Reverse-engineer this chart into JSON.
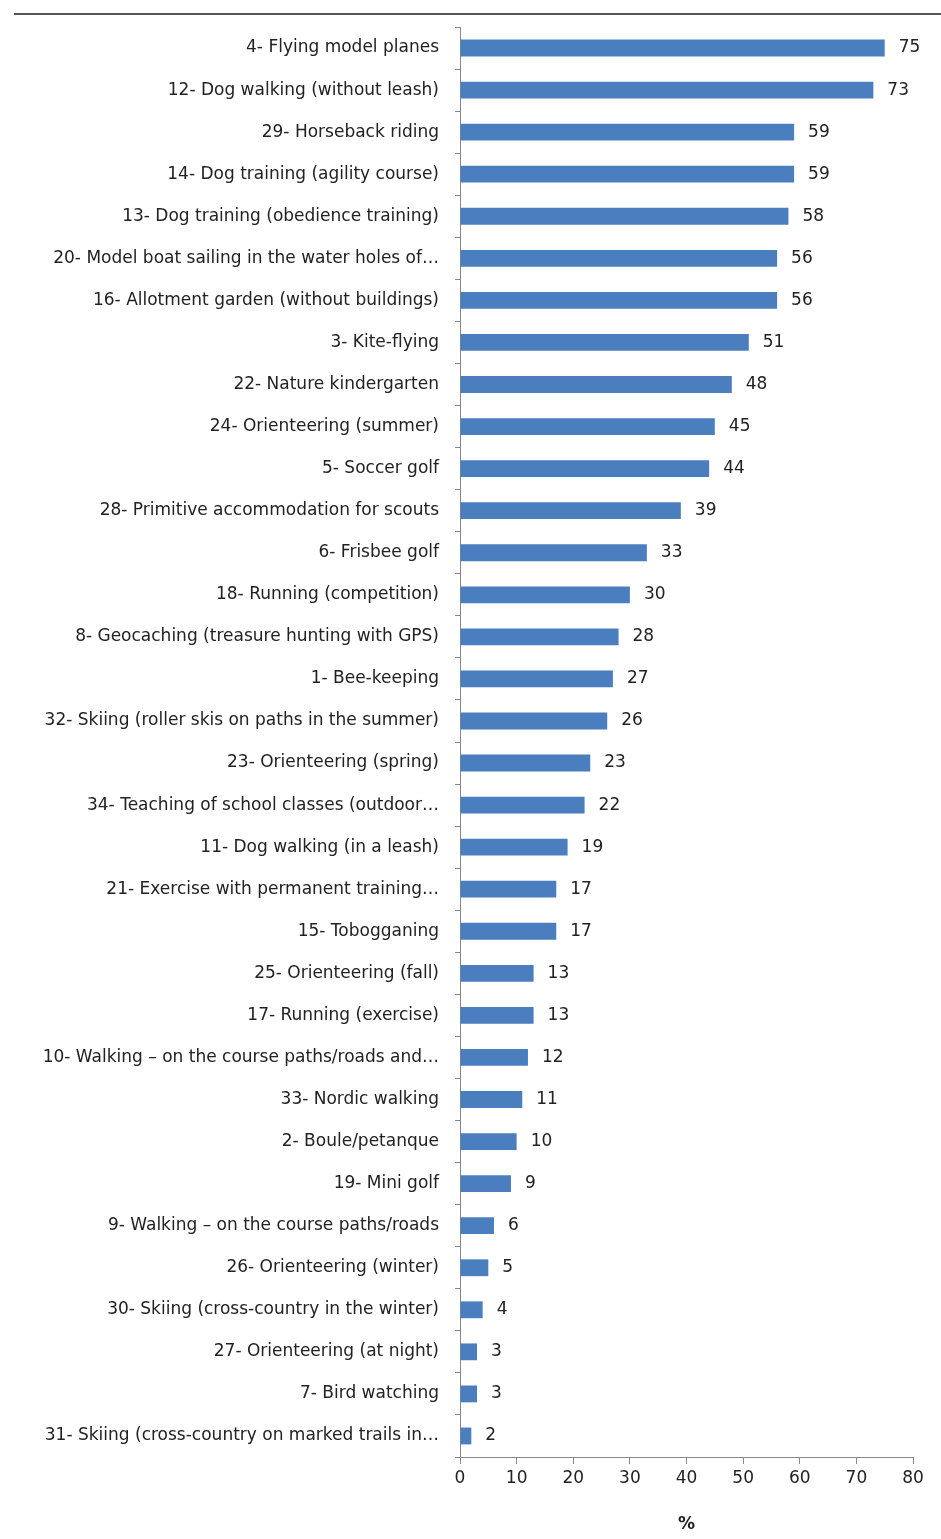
{
  "chart_data": {
    "type": "bar",
    "orientation": "horizontal",
    "xlabel": "%",
    "categories": [
      "4- Flying model planes",
      "12- Dog walking (without leash)",
      "29- Horseback riding",
      "14- Dog training (agility course)",
      "13- Dog training (obedience training)",
      "20- Model boat sailing in the water holes of…",
      "16- Allotment garden (without buildings)",
      "3- Kite-flying",
      "22- Nature kindergarten",
      "24- Orienteering (summer)",
      "5- Soccer golf",
      "28- Primitive accommodation for scouts",
      "6- Frisbee golf",
      "18- Running (competition)",
      "8- Geocaching (treasure hunting with GPS)",
      "1- Bee-keeping",
      "32- Skiing (roller skis on paths in the summer)",
      "23- Orienteering (spring)",
      "34- Teaching of school classes (outdoor…",
      "11- Dog walking (in a leash)",
      "21- Exercise with permanent training…",
      "15- Tobogganing",
      "25- Orienteering (fall)",
      "17- Running (exercise)",
      "10- Walking – on the course paths/roads and…",
      "33- Nordic walking",
      "2- Boule/petanque",
      "19- Mini golf",
      "9- Walking – on the course paths/roads",
      "26- Orienteering (winter)",
      "30- Skiing (cross-country in the winter)",
      "27- Orienteering (at night)",
      "7- Bird watching",
      "31- Skiing (cross-country on marked trails in…"
    ],
    "values": [
      75,
      73,
      59,
      59,
      58,
      56,
      56,
      51,
      48,
      45,
      44,
      39,
      33,
      30,
      28,
      27,
      26,
      23,
      22,
      19,
      17,
      17,
      13,
      13,
      12,
      11,
      10,
      9,
      6,
      5,
      4,
      3,
      3,
      2
    ],
    "color": "#4a7ebf",
    "xlim": [
      0,
      80
    ],
    "xticks": [
      0,
      10,
      20,
      30,
      40,
      50,
      60,
      70,
      80
    ],
    "data_labels": true,
    "grid": false,
    "legend": false
  }
}
